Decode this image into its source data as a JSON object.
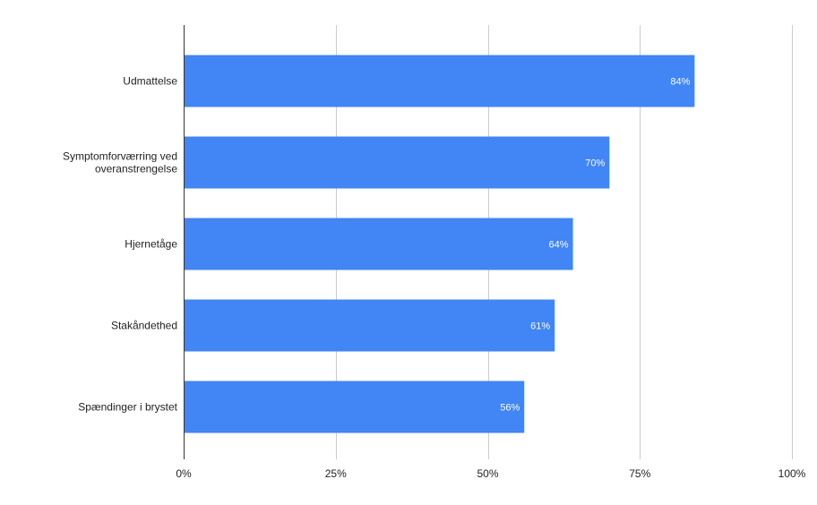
{
  "chart_data": {
    "type": "bar",
    "orientation": "horizontal",
    "categories": [
      [
        "Udmattelse"
      ],
      [
        "Symptomforværring ved",
        "overanstrengelse"
      ],
      [
        "Hjernetåge"
      ],
      [
        "Stakåndethed"
      ],
      [
        "Spændinger i brystet"
      ]
    ],
    "values": [
      84,
      70,
      64,
      61,
      56
    ],
    "data_labels": [
      "84%",
      "70%",
      "64%",
      "61%",
      "56%"
    ],
    "xlim": [
      0,
      100
    ],
    "xticks": [
      0,
      25,
      50,
      75,
      100
    ],
    "xtick_labels": [
      "0%",
      "25%",
      "50%",
      "75%",
      "100%"
    ],
    "grid": true,
    "bar_color": "#4285f4",
    "grid_color": "#cccccc",
    "axis_color": "#333333"
  }
}
